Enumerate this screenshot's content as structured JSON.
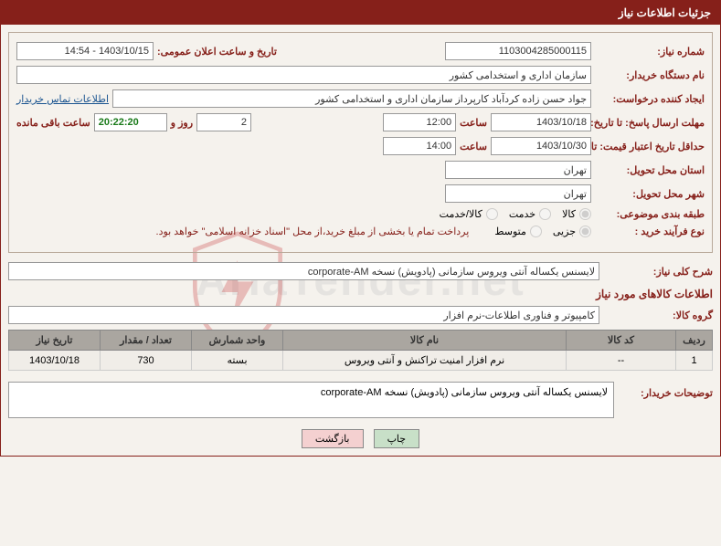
{
  "header": {
    "title": "جزئیات اطلاعات نیاز"
  },
  "watermark": "AriaTender.net",
  "fields": {
    "need_number_label": "شماره نیاز:",
    "need_number": "1103004285000115",
    "announce_label": "تاریخ و ساعت اعلان عمومی:",
    "announce_value": "1403/10/15 - 14:54",
    "buyer_org_label": "نام دستگاه خریدار:",
    "buyer_org": "سازمان اداری و استخدامی کشور",
    "requester_label": "ایجاد کننده درخواست:",
    "requester": "جواد حسن زاده کردآباد کارپرداز سازمان اداری و استخدامی کشور",
    "contact_link": "اطلاعات تماس خریدار",
    "deadline_reply_label": "مهلت ارسال پاسخ: تا تاریخ:",
    "deadline_date": "1403/10/18",
    "time_label": "ساعت",
    "deadline_time": "12:00",
    "days_value": "2",
    "days_label": "روز و",
    "countdown": "20:22:20",
    "remaining_label": "ساعت باقی مانده",
    "validity_label": "حداقل تاریخ اعتبار قیمت: تا تاریخ:",
    "validity_date": "1403/10/30",
    "validity_time": "14:00",
    "province_label": "استان محل تحویل:",
    "province": "تهران",
    "city_label": "شهر محل تحویل:",
    "city": "تهران",
    "category_label": "طبقه بندی موضوعی:",
    "radio_goods": "کالا",
    "radio_service": "خدمت",
    "radio_both": "کالا/خدمت",
    "process_label": "نوع فرآیند خرید :",
    "radio_partial": "جزیی",
    "radio_medium": "متوسط",
    "process_note": "پرداخت تمام یا بخشی از مبلغ خرید،از محل \"اسناد خزانه اسلامی\" خواهد بود.",
    "overview_label": "شرح کلی نیاز:",
    "overview": "لایسنس یکساله آنتی ویروس سازمانی (پادویش) نسخه corporate-AM",
    "goods_info_title": "اطلاعات کالاهای مورد نیاز",
    "goods_group_label": "گروه کالا:",
    "goods_group": "کامپیوتر و فناوری اطلاعات-نرم افزار",
    "buyer_desc_label": "توضیحات خریدار:",
    "buyer_desc": "لایسنس یکساله آنتی ویروس سازمانی (پادویش) نسخه corporate-AM"
  },
  "table": {
    "columns": [
      "ردیف",
      "کد کالا",
      "نام کالا",
      "واحد شمارش",
      "تعداد / مقدار",
      "تاریخ نیاز"
    ],
    "rows": [
      [
        "1",
        "--",
        "نرم افزار امنیت تراکنش و آنتی ویروس",
        "بسته",
        "730",
        "1403/10/18"
      ]
    ],
    "col_widths": [
      "40px",
      "120px",
      "auto",
      "100px",
      "100px",
      "100px"
    ]
  },
  "buttons": {
    "print": "چاپ",
    "back": "بازگشت"
  },
  "colors": {
    "header_bg": "#86201a",
    "label": "#86201a",
    "link": "#1a5490",
    "countdown": "#1a7a1a",
    "panel_border": "#b8a899"
  }
}
